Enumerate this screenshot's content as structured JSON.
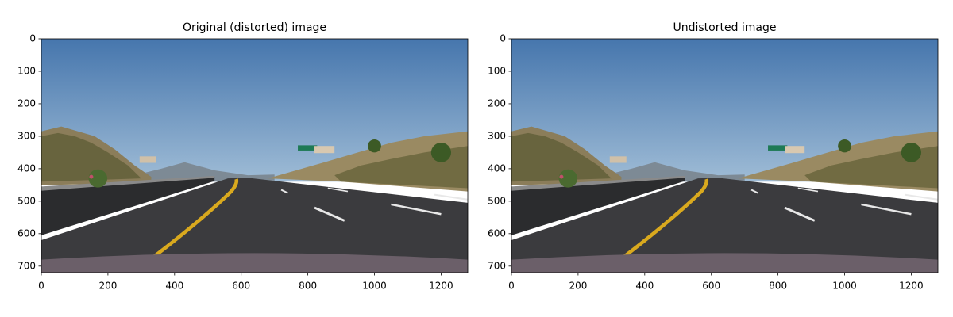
{
  "chart_data": [
    {
      "type": "image",
      "title": "Original (distorted) image",
      "xlim": [
        0,
        1280
      ],
      "ylim": [
        720,
        0
      ],
      "xticks": [
        0,
        200,
        400,
        600,
        800,
        1000,
        1200
      ],
      "yticks": [
        0,
        100,
        200,
        300,
        400,
        500,
        600,
        700
      ]
    },
    {
      "type": "image",
      "title": "Undistorted image",
      "xlim": [
        0,
        1280
      ],
      "ylim": [
        720,
        0
      ],
      "xticks": [
        0,
        200,
        400,
        600,
        800,
        1000,
        1200
      ],
      "yticks": [
        0,
        100,
        200,
        300,
        400,
        500,
        600,
        700
      ]
    }
  ]
}
